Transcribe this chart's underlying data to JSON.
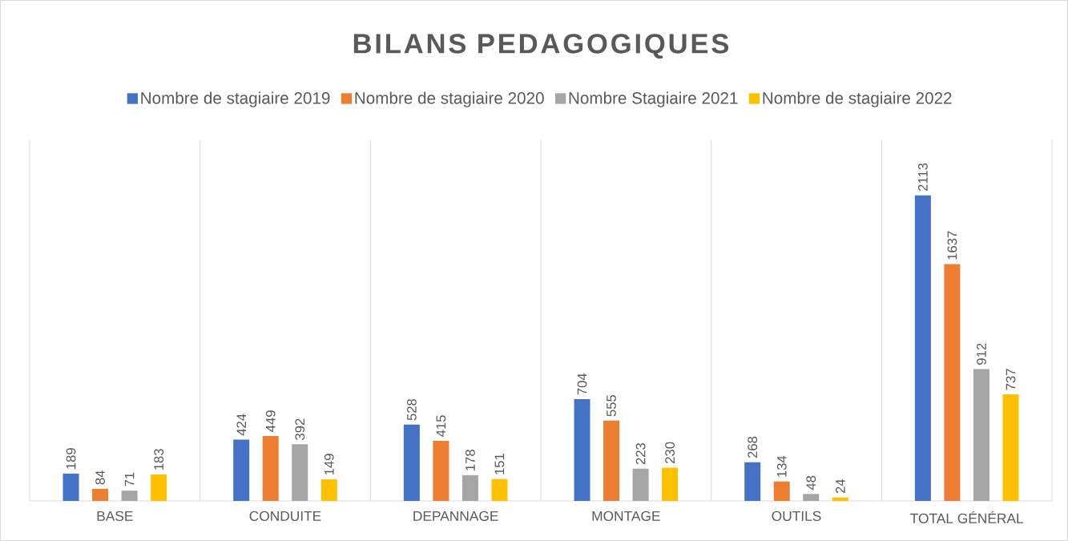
{
  "chart_data": {
    "type": "bar",
    "title": "BILANS PEDAGOGIQUES",
    "categories": [
      "BASE",
      "CONDUITE",
      "DEPANNAGE",
      "MONTAGE",
      "OUTILS",
      "TOTAL GÉNÉRAL"
    ],
    "series": [
      {
        "name": "Nombre de stagiaire 2019",
        "color": "#4472c4",
        "values": [
          189,
          424,
          528,
          704,
          268,
          2113
        ]
      },
      {
        "name": "Nombre de stagiaire 2020",
        "color": "#ed7d31",
        "values": [
          84,
          449,
          415,
          555,
          134,
          1637
        ]
      },
      {
        "name": "Nombre Stagiaire 2021",
        "color": "#a5a5a5",
        "values": [
          71,
          392,
          178,
          223,
          48,
          912
        ]
      },
      {
        "name": "Nombre de stagiaire 2022",
        "color": "#ffc000",
        "values": [
          183,
          149,
          151,
          230,
          24,
          737
        ]
      }
    ],
    "data_labels": true,
    "grid": "x",
    "legend": "top"
  }
}
